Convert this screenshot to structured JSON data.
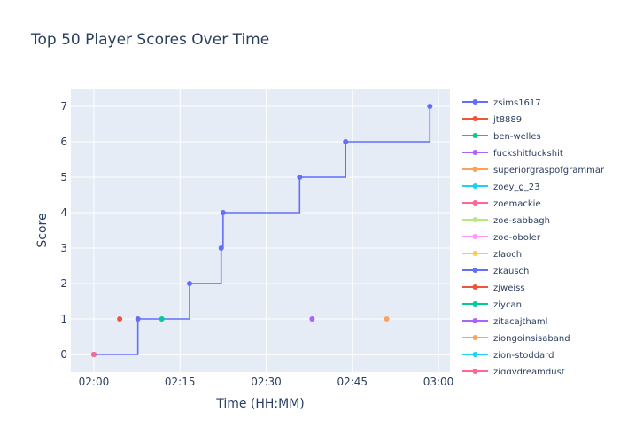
{
  "chart_data": {
    "type": "line",
    "title": "Top 50 Player Scores Over Time",
    "xlabel": "Time (HH:MM)",
    "ylabel": "Score",
    "xlim": [
      "01:56",
      "03:02"
    ],
    "ylim": [
      -0.5,
      7.5
    ],
    "x_ticks": [
      "02:00",
      "02:15",
      "02:30",
      "02:45",
      "03:00"
    ],
    "y_ticks": [
      0,
      1,
      2,
      3,
      4,
      5,
      6,
      7
    ],
    "grid": true,
    "line_shape": "step",
    "legend_placement": "right",
    "series": [
      {
        "name": "zsims1617",
        "color": "#636efa",
        "points": [
          [
            "02:00",
            0
          ],
          [
            "02:07:40",
            1
          ],
          [
            "02:16:40",
            2
          ],
          [
            "02:22:10",
            3
          ],
          [
            "02:22:30",
            4
          ],
          [
            "02:35:50",
            5
          ],
          [
            "02:43:50",
            6
          ],
          [
            "02:58:30",
            7
          ]
        ]
      },
      {
        "name": "jt8889",
        "color": "#ef553b",
        "points": [
          [
            "02:04:30",
            1
          ]
        ]
      },
      {
        "name": "ben-welles",
        "color": "#00cc96",
        "points": [
          [
            "02:11:50",
            1
          ]
        ]
      },
      {
        "name": "fuckshitfuckshit",
        "color": "#ab63fa",
        "points": [
          [
            "02:38:00",
            1
          ]
        ]
      },
      {
        "name": "superiorgraspofgrammar",
        "color": "#ffa15a",
        "points": [
          [
            "02:51:00",
            1
          ]
        ]
      },
      {
        "name": "zoey_g_23",
        "color": "#19d3f3",
        "points": [
          [
            "02:00",
            0
          ]
        ]
      },
      {
        "name": "zoemackie",
        "color": "#ff6692",
        "points": [
          [
            "02:00",
            0
          ]
        ]
      },
      {
        "name": "zoe-sabbagh",
        "color": "#b6e880",
        "points": [
          [
            "02:00",
            0
          ]
        ]
      },
      {
        "name": "zoe-oboler",
        "color": "#ff97ff",
        "points": [
          [
            "02:00",
            0
          ]
        ]
      },
      {
        "name": "zlaoch",
        "color": "#fecb52",
        "points": [
          [
            "02:00",
            0
          ]
        ]
      },
      {
        "name": "zkausch",
        "color": "#636efa",
        "points": [
          [
            "02:00",
            0
          ]
        ]
      },
      {
        "name": "zjweiss",
        "color": "#ef553b",
        "points": [
          [
            "02:00",
            0
          ]
        ]
      },
      {
        "name": "ziycan",
        "color": "#00cc96",
        "points": [
          [
            "02:00",
            0
          ]
        ]
      },
      {
        "name": "zitacajthaml",
        "color": "#ab63fa",
        "points": [
          [
            "02:00",
            0
          ]
        ]
      },
      {
        "name": "ziongoinsisaband",
        "color": "#ffa15a",
        "points": [
          [
            "02:00",
            0
          ]
        ]
      },
      {
        "name": "zion-stoddard",
        "color": "#19d3f3",
        "points": [
          [
            "02:00",
            0
          ]
        ]
      },
      {
        "name": "ziggydreamdust",
        "color": "#ff6692",
        "points": [
          [
            "02:00",
            0
          ]
        ]
      }
    ]
  }
}
